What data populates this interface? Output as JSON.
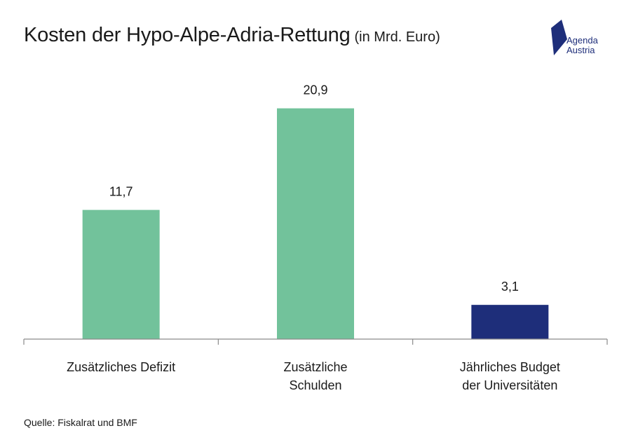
{
  "title": "Kosten der Hypo-Alpe-Adria-Rettung",
  "subtitle": "(in Mrd. Euro)",
  "logo": {
    "line1": "Agenda",
    "line2": "Austria",
    "color": "#1e2e7a"
  },
  "source": "Quelle: Fiskalrat und BMF",
  "chart_data": {
    "type": "bar",
    "categories": [
      [
        "Zusätzliches Defizit"
      ],
      [
        "Zusätzliche",
        "Schulden"
      ],
      [
        "Jährliches Budget",
        "der Universitäten"
      ]
    ],
    "values": [
      11.7,
      20.9,
      3.1
    ],
    "value_labels": [
      "11,7",
      "20,9",
      "3,1"
    ],
    "colors": [
      "#72c29b",
      "#72c29b",
      "#1e2e7a"
    ],
    "title": "Kosten der Hypo-Alpe-Adria-Rettung",
    "ylim": [
      0,
      25
    ],
    "grid": false,
    "legend": "none"
  }
}
